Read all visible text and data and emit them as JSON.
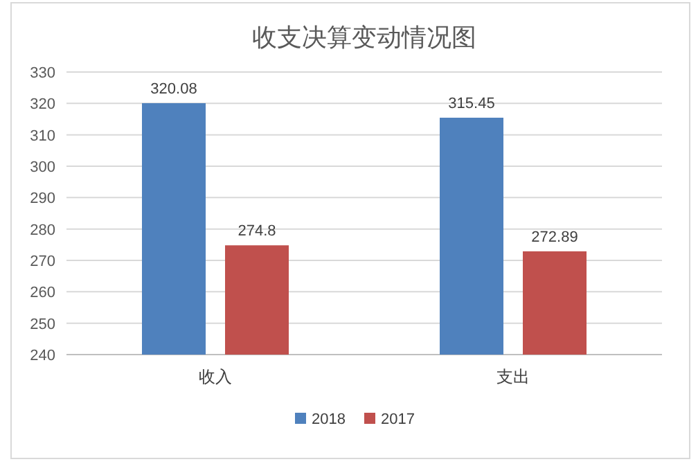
{
  "chart_data": {
    "type": "bar",
    "title": "收支决算变动情况图",
    "categories": [
      "收入",
      "支出"
    ],
    "series": [
      {
        "name": "2018",
        "color": "#4f81bd",
        "values": [
          320.08,
          315.45
        ]
      },
      {
        "name": "2017",
        "color": "#c0504d",
        "values": [
          274.8,
          272.89
        ]
      }
    ],
    "ylim": [
      240,
      330
    ],
    "yticks": [
      240,
      250,
      260,
      270,
      280,
      290,
      300,
      310,
      320,
      330
    ],
    "grid": "y",
    "legend": "bottom",
    "data_labels": true
  }
}
